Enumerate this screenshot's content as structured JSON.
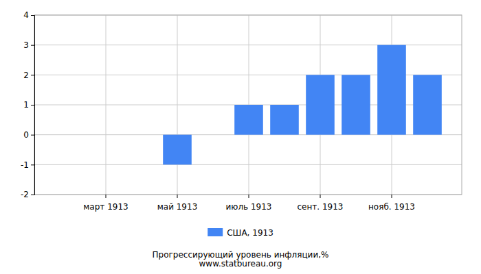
{
  "chart_data": {
    "type": "bar",
    "title": "Прогрессирующий уровень инфляции,%",
    "subtitle": "www.statbureau.org",
    "categories": [
      null,
      null,
      "март 1913",
      null,
      "май 1913",
      null,
      "июль 1913",
      null,
      "сент. 1913",
      null,
      "нояб. 1913",
      null
    ],
    "series": [
      {
        "name": "США, 1913",
        "color": "#4285f4",
        "values": [
          0,
          0,
          0,
          0,
          -1,
          0,
          1,
          1,
          2,
          2,
          3,
          2
        ]
      }
    ],
    "ylim": [
      -2,
      4
    ],
    "yticks": [
      -2,
      -1,
      0,
      1,
      2,
      3,
      4
    ],
    "grid": true,
    "legend": "bottom"
  }
}
